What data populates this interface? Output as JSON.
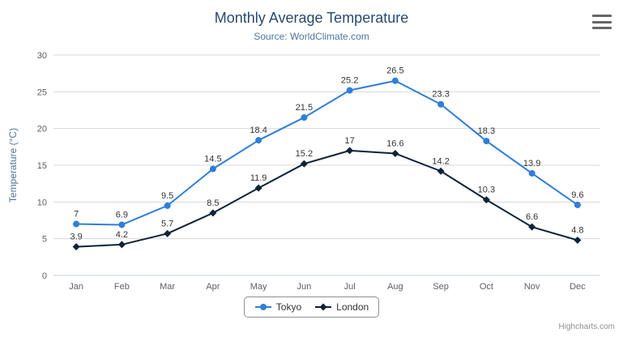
{
  "chart_data": {
    "type": "line",
    "title": "Monthly Average Temperature",
    "subtitle": "Source: WorldClimate.com",
    "categories": [
      "Jan",
      "Feb",
      "Mar",
      "Apr",
      "May",
      "Jun",
      "Jul",
      "Aug",
      "Sep",
      "Oct",
      "Nov",
      "Dec"
    ],
    "series": [
      {
        "name": "Tokyo",
        "color": "#2f7ed8",
        "marker": "circle",
        "values": [
          7,
          6.9,
          9.5,
          14.5,
          18.4,
          21.5,
          25.2,
          26.5,
          23.3,
          18.3,
          13.9,
          9.6
        ]
      },
      {
        "name": "London",
        "color": "#0d233a",
        "marker": "diamond",
        "values": [
          3.9,
          4.2,
          5.7,
          8.5,
          11.9,
          15.2,
          17,
          16.6,
          14.2,
          10.3,
          6.6,
          4.8
        ]
      }
    ],
    "xlabel": "",
    "ylabel": "Temperature (°C)",
    "ylim": [
      0,
      30
    ],
    "ytick_step": 5,
    "grid": true,
    "legend_position": "bottom"
  },
  "colors": {
    "title": "#274b6d",
    "subtitle": "#4d759e",
    "axis_title": "#4d759e",
    "tick_label": "#606060",
    "grid": "#d8d8d8",
    "axis_line": "#c0d0e0",
    "data_label": "#333333",
    "legend_border": "#909090",
    "credits": "#909090"
  },
  "icons": {
    "menu": "hamburger-icon"
  },
  "credits": {
    "label": "Highcharts.com"
  }
}
